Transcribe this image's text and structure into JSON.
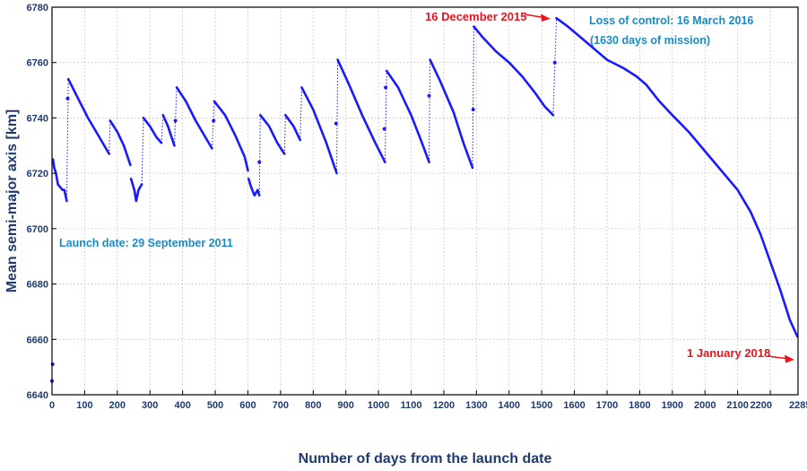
{
  "chart_data": {
    "type": "scatter",
    "title": "",
    "xlabel": "Number of days from the launch date",
    "ylabel": "Mean semi-major axis [km]",
    "xlim": [
      0,
      2285
    ],
    "ylim": [
      6640,
      6780
    ],
    "xticks": [
      0,
      100,
      200,
      300,
      400,
      500,
      600,
      700,
      800,
      900,
      1000,
      1100,
      1200,
      1300,
      1400,
      1500,
      1600,
      1700,
      1800,
      1900,
      2000,
      2100,
      2200,
      2285
    ],
    "yticks": [
      6640,
      6660,
      6680,
      6700,
      6720,
      6740,
      6760,
      6780
    ],
    "grid": true,
    "series_color": "#1a1aff",
    "annotation_colors": {
      "red": "#e8141e",
      "blue": "#1a8bc2"
    },
    "annotations": [
      {
        "text": "Launch date: 29 September 2011",
        "color": "blue"
      },
      {
        "text": "16 December 2015",
        "color": "red",
        "arrow_to": [
          1530,
          6776
        ]
      },
      {
        "text": "Loss of control: 16 March 2016",
        "color": "blue"
      },
      {
        "text": "(1630 days of mission)",
        "color": "blue"
      },
      {
        "text": "1 January 2018",
        "color": "red",
        "arrow_to": [
          2283,
          6661
        ]
      }
    ],
    "isolated_points": [
      {
        "x": 0,
        "y": 6645
      },
      {
        "x": 2,
        "y": 6651
      },
      {
        "x": 48,
        "y": 6747
      },
      {
        "x": 378,
        "y": 6739
      },
      {
        "x": 495,
        "y": 6739
      },
      {
        "x": 635,
        "y": 6724
      },
      {
        "x": 870,
        "y": 6738
      },
      {
        "x": 1018,
        "y": 6736
      },
      {
        "x": 1022,
        "y": 6751
      },
      {
        "x": 1155,
        "y": 6748
      },
      {
        "x": 1290,
        "y": 6743
      },
      {
        "x": 1540,
        "y": 6760
      }
    ],
    "segments": [
      {
        "points": [
          [
            3,
            6725
          ],
          [
            7,
            6722
          ],
          [
            12,
            6720
          ],
          [
            18,
            6716
          ],
          [
            25,
            6715
          ],
          [
            32,
            6714
          ],
          [
            38,
            6714
          ],
          [
            45,
            6710
          ]
        ]
      },
      {
        "points": [
          [
            50,
            6754
          ],
          [
            80,
            6747
          ],
          [
            110,
            6740
          ],
          [
            140,
            6734
          ],
          [
            175,
            6727
          ]
        ]
      },
      {
        "points": [
          [
            178,
            6739
          ],
          [
            200,
            6735
          ],
          [
            220,
            6730
          ],
          [
            240,
            6723
          ]
        ]
      },
      {
        "points": [
          [
            242,
            6718
          ],
          [
            252,
            6714
          ],
          [
            258,
            6710
          ],
          [
            265,
            6714
          ],
          [
            275,
            6716
          ]
        ]
      },
      {
        "points": [
          [
            280,
            6740
          ],
          [
            300,
            6737
          ],
          [
            320,
            6733
          ],
          [
            335,
            6731
          ]
        ]
      },
      {
        "points": [
          [
            340,
            6741
          ],
          [
            355,
            6737
          ],
          [
            375,
            6730
          ]
        ]
      },
      {
        "points": [
          [
            382,
            6751
          ],
          [
            410,
            6746
          ],
          [
            440,
            6739
          ],
          [
            470,
            6733
          ],
          [
            490,
            6729
          ]
        ]
      },
      {
        "points": [
          [
            497,
            6746
          ],
          [
            530,
            6741
          ],
          [
            560,
            6734
          ],
          [
            590,
            6726
          ],
          [
            600,
            6721
          ]
        ]
      },
      {
        "points": [
          [
            602,
            6718
          ],
          [
            610,
            6715
          ],
          [
            620,
            6712
          ],
          [
            630,
            6714
          ],
          [
            635,
            6712
          ]
        ]
      },
      {
        "points": [
          [
            638,
            6741
          ],
          [
            665,
            6737
          ],
          [
            690,
            6731
          ],
          [
            712,
            6727
          ]
        ]
      },
      {
        "points": [
          [
            715,
            6741
          ],
          [
            740,
            6737
          ],
          [
            760,
            6732
          ]
        ]
      },
      {
        "points": [
          [
            765,
            6751
          ],
          [
            800,
            6743
          ],
          [
            840,
            6731
          ],
          [
            872,
            6720
          ]
        ]
      },
      {
        "points": [
          [
            875,
            6761
          ],
          [
            910,
            6752
          ],
          [
            950,
            6741
          ],
          [
            990,
            6731
          ],
          [
            1020,
            6724
          ]
        ]
      },
      {
        "points": [
          [
            1025,
            6757
          ],
          [
            1060,
            6751
          ],
          [
            1100,
            6741
          ],
          [
            1130,
            6732
          ],
          [
            1155,
            6724
          ]
        ]
      },
      {
        "points": [
          [
            1158,
            6761
          ],
          [
            1190,
            6753
          ],
          [
            1230,
            6742
          ],
          [
            1260,
            6731
          ],
          [
            1288,
            6722
          ]
        ]
      },
      {
        "points": [
          [
            1292,
            6773
          ],
          [
            1320,
            6769
          ],
          [
            1360,
            6764
          ],
          [
            1400,
            6760
          ],
          [
            1440,
            6755
          ],
          [
            1480,
            6749
          ],
          [
            1510,
            6744
          ],
          [
            1535,
            6741
          ]
        ]
      },
      {
        "points": [
          [
            1545,
            6776
          ],
          [
            1580,
            6773
          ],
          [
            1620,
            6769
          ],
          [
            1660,
            6765
          ],
          [
            1700,
            6761
          ],
          [
            1750,
            6758
          ],
          [
            1790,
            6755
          ],
          [
            1820,
            6752
          ],
          [
            1860,
            6746
          ],
          [
            1900,
            6741
          ],
          [
            1950,
            6735
          ],
          [
            2000,
            6728
          ],
          [
            2050,
            6721
          ],
          [
            2100,
            6714
          ],
          [
            2140,
            6706
          ],
          [
            2170,
            6698
          ],
          [
            2200,
            6688
          ],
          [
            2230,
            6678
          ],
          [
            2260,
            6667
          ],
          [
            2283,
            6661
          ]
        ]
      }
    ]
  }
}
